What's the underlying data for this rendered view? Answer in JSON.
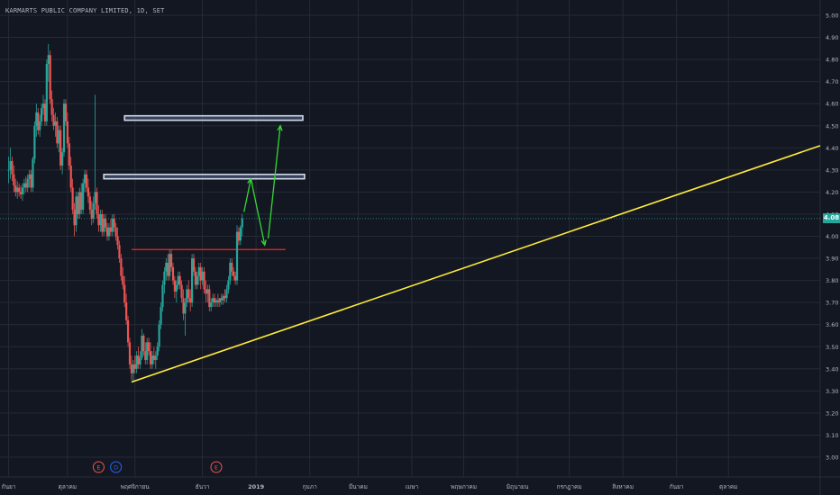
{
  "header": {
    "title": "KARMARTS PUBLIC COMPANY LIMITED, 1D, SET"
  },
  "price_tag": {
    "value": "4.08",
    "color": "#26a69a"
  },
  "colors": {
    "background": "#131722",
    "grid": "#262a35",
    "up": "#26a69a",
    "down": "#ef5350",
    "trendline": "#ffeb3b",
    "resistance": "#ff1f1f",
    "arrow": "#33d933",
    "zone": "#d1d9ea",
    "axis_text": "#b2b5be"
  },
  "chart_data": {
    "type": "candlestick",
    "title": "KARMARTS PUBLIC COMPANY LIMITED, 1D, SET",
    "xlabel": "",
    "ylabel": "",
    "ylim": [
      2.95,
      5.05
    ],
    "y_ticks": [
      "5.00",
      "4.90",
      "4.80",
      "4.70",
      "4.60",
      "4.50",
      "4.40",
      "4.30",
      "4.20",
      "4.10",
      "4.00",
      "3.90",
      "3.80",
      "3.70",
      "3.60",
      "3.50",
      "3.40",
      "3.30",
      "3.20",
      "3.10",
      "3.00"
    ],
    "x_ticks": [
      "กันยา",
      "ตุลาคม",
      "พฤศจิกายน",
      "ธันวา",
      "2019",
      "กุมภา",
      "มีนาคม",
      "เมษา",
      "พฤษภาคม",
      "มิถุนายน",
      "กรกฎาคม",
      "สิงหาคม",
      "กันยา",
      "ตุลาคม"
    ],
    "x_tick_days": [
      0,
      34,
      73,
      112,
      143,
      174,
      202,
      233,
      263,
      294,
      324,
      355,
      386,
      416
    ],
    "x_domain_days": [
      -5,
      469
    ],
    "grid": true,
    "last_price": 4.08,
    "candles": [
      {
        "d": 0,
        "o": 4.3,
        "h": 4.36,
        "l": 4.24,
        "c": 4.3
      },
      {
        "d": 1,
        "o": 4.3,
        "h": 4.4,
        "l": 4.26,
        "c": 4.34
      },
      {
        "d": 2,
        "o": 4.34,
        "h": 4.36,
        "l": 4.25,
        "c": 4.28
      },
      {
        "d": 3,
        "o": 4.28,
        "h": 4.32,
        "l": 4.2,
        "c": 4.23
      },
      {
        "d": 4,
        "o": 4.23,
        "h": 4.26,
        "l": 4.18,
        "c": 4.2
      },
      {
        "d": 5,
        "o": 4.2,
        "h": 4.25,
        "l": 4.17,
        "c": 4.22
      },
      {
        "d": 6,
        "o": 4.22,
        "h": 4.24,
        "l": 4.18,
        "c": 4.2
      },
      {
        "d": 7,
        "o": 4.2,
        "h": 4.23,
        "l": 4.17,
        "c": 4.19
      },
      {
        "d": 8,
        "o": 4.19,
        "h": 4.24,
        "l": 4.16,
        "c": 4.22
      },
      {
        "d": 9,
        "o": 4.22,
        "h": 4.26,
        "l": 4.19,
        "c": 4.24
      },
      {
        "d": 10,
        "o": 4.24,
        "h": 4.27,
        "l": 4.2,
        "c": 4.22
      },
      {
        "d": 11,
        "o": 4.22,
        "h": 4.28,
        "l": 4.2,
        "c": 4.26
      },
      {
        "d": 12,
        "o": 4.26,
        "h": 4.3,
        "l": 4.22,
        "c": 4.28
      },
      {
        "d": 13,
        "o": 4.28,
        "h": 4.3,
        "l": 4.2,
        "c": 4.22
      },
      {
        "d": 14,
        "o": 4.22,
        "h": 4.36,
        "l": 4.2,
        "c": 4.35
      },
      {
        "d": 15,
        "o": 4.35,
        "h": 4.52,
        "l": 4.33,
        "c": 4.5
      },
      {
        "d": 16,
        "o": 4.5,
        "h": 4.6,
        "l": 4.45,
        "c": 4.56
      },
      {
        "d": 17,
        "o": 4.56,
        "h": 4.58,
        "l": 4.46,
        "c": 4.48
      },
      {
        "d": 18,
        "o": 4.48,
        "h": 4.55,
        "l": 4.45,
        "c": 4.52
      },
      {
        "d": 19,
        "o": 4.52,
        "h": 4.6,
        "l": 4.5,
        "c": 4.58
      },
      {
        "d": 20,
        "o": 4.58,
        "h": 4.64,
        "l": 4.55,
        "c": 4.6
      },
      {
        "d": 21,
        "o": 4.6,
        "h": 4.62,
        "l": 4.5,
        "c": 4.52
      },
      {
        "d": 22,
        "o": 4.52,
        "h": 4.8,
        "l": 4.5,
        "c": 4.78
      },
      {
        "d": 23,
        "o": 4.78,
        "h": 4.87,
        "l": 4.7,
        "c": 4.82
      },
      {
        "d": 24,
        "o": 4.82,
        "h": 4.84,
        "l": 4.6,
        "c": 4.62
      },
      {
        "d": 25,
        "o": 4.62,
        "h": 4.66,
        "l": 4.52,
        "c": 4.55
      },
      {
        "d": 26,
        "o": 4.55,
        "h": 4.58,
        "l": 4.48,
        "c": 4.5
      },
      {
        "d": 27,
        "o": 4.5,
        "h": 4.56,
        "l": 4.45,
        "c": 4.52
      },
      {
        "d": 28,
        "o": 4.52,
        "h": 4.54,
        "l": 4.4,
        "c": 4.42
      },
      {
        "d": 29,
        "o": 4.42,
        "h": 4.5,
        "l": 4.38,
        "c": 4.48
      },
      {
        "d": 30,
        "o": 4.48,
        "h": 4.5,
        "l": 4.3,
        "c": 4.32
      },
      {
        "d": 31,
        "o": 4.32,
        "h": 4.4,
        "l": 4.28,
        "c": 4.38
      },
      {
        "d": 32,
        "o": 4.38,
        "h": 4.62,
        "l": 4.36,
        "c": 4.6
      },
      {
        "d": 33,
        "o": 4.6,
        "h": 4.62,
        "l": 4.5,
        "c": 4.52
      },
      {
        "d": 34,
        "o": 4.52,
        "h": 4.56,
        "l": 4.4,
        "c": 4.42
      },
      {
        "d": 35,
        "o": 4.42,
        "h": 4.45,
        "l": 4.3,
        "c": 4.32
      },
      {
        "d": 36,
        "o": 4.32,
        "h": 4.36,
        "l": 4.2,
        "c": 4.22
      },
      {
        "d": 37,
        "o": 4.22,
        "h": 4.26,
        "l": 4.1,
        "c": 4.12
      },
      {
        "d": 38,
        "o": 4.12,
        "h": 4.15,
        "l": 4.0,
        "c": 4.05
      },
      {
        "d": 39,
        "o": 4.05,
        "h": 4.2,
        "l": 4.02,
        "c": 4.18
      },
      {
        "d": 40,
        "o": 4.18,
        "h": 4.2,
        "l": 4.08,
        "c": 4.1
      },
      {
        "d": 41,
        "o": 4.1,
        "h": 4.22,
        "l": 4.08,
        "c": 4.2
      },
      {
        "d": 42,
        "o": 4.2,
        "h": 4.24,
        "l": 4.1,
        "c": 4.12
      },
      {
        "d": 43,
        "o": 4.12,
        "h": 4.26,
        "l": 4.1,
        "c": 4.24
      },
      {
        "d": 44,
        "o": 4.24,
        "h": 4.3,
        "l": 4.2,
        "c": 4.28
      },
      {
        "d": 45,
        "o": 4.28,
        "h": 4.3,
        "l": 4.2,
        "c": 4.22
      },
      {
        "d": 46,
        "o": 4.22,
        "h": 4.26,
        "l": 4.15,
        "c": 4.18
      },
      {
        "d": 47,
        "o": 4.18,
        "h": 4.2,
        "l": 4.1,
        "c": 4.12
      },
      {
        "d": 48,
        "o": 4.12,
        "h": 4.16,
        "l": 4.05,
        "c": 4.08
      },
      {
        "d": 49,
        "o": 4.08,
        "h": 4.18,
        "l": 4.06,
        "c": 4.15
      },
      {
        "d": 50,
        "o": 4.15,
        "h": 4.64,
        "l": 4.12,
        "c": 4.2
      },
      {
        "d": 51,
        "o": 4.2,
        "h": 4.22,
        "l": 4.08,
        "c": 4.1
      },
      {
        "d": 52,
        "o": 4.1,
        "h": 4.14,
        "l": 4.02,
        "c": 4.05
      },
      {
        "d": 53,
        "o": 4.05,
        "h": 4.12,
        "l": 4.02,
        "c": 4.1
      },
      {
        "d": 54,
        "o": 4.1,
        "h": 4.12,
        "l": 4.0,
        "c": 4.02
      },
      {
        "d": 55,
        "o": 4.02,
        "h": 4.1,
        "l": 4.0,
        "c": 4.08
      },
      {
        "d": 56,
        "o": 4.08,
        "h": 4.1,
        "l": 4.02,
        "c": 4.04
      },
      {
        "d": 57,
        "o": 4.04,
        "h": 4.06,
        "l": 3.98,
        "c": 4.0
      },
      {
        "d": 58,
        "o": 4.0,
        "h": 4.06,
        "l": 3.98,
        "c": 4.04
      },
      {
        "d": 59,
        "o": 4.04,
        "h": 4.08,
        "l": 4.0,
        "c": 4.02
      },
      {
        "d": 60,
        "o": 4.02,
        "h": 4.1,
        "l": 4.0,
        "c": 4.08
      },
      {
        "d": 61,
        "o": 4.08,
        "h": 4.1,
        "l": 4.02,
        "c": 4.04
      },
      {
        "d": 62,
        "o": 4.04,
        "h": 4.06,
        "l": 3.98,
        "c": 4.0
      },
      {
        "d": 63,
        "o": 4.0,
        "h": 4.04,
        "l": 3.94,
        "c": 3.96
      },
      {
        "d": 64,
        "o": 3.96,
        "h": 3.98,
        "l": 3.88,
        "c": 3.9
      },
      {
        "d": 65,
        "o": 3.9,
        "h": 3.92,
        "l": 3.8,
        "c": 3.82
      },
      {
        "d": 66,
        "o": 3.82,
        "h": 3.86,
        "l": 3.76,
        "c": 3.78
      },
      {
        "d": 67,
        "o": 3.78,
        "h": 3.82,
        "l": 3.68,
        "c": 3.7
      },
      {
        "d": 68,
        "o": 3.7,
        "h": 3.74,
        "l": 3.6,
        "c": 3.62
      },
      {
        "d": 69,
        "o": 3.62,
        "h": 3.64,
        "l": 3.5,
        "c": 3.52
      },
      {
        "d": 70,
        "o": 3.52,
        "h": 3.54,
        "l": 3.4,
        "c": 3.42
      },
      {
        "d": 71,
        "o": 3.42,
        "h": 3.46,
        "l": 3.35,
        "c": 3.38
      },
      {
        "d": 72,
        "o": 3.38,
        "h": 3.44,
        "l": 3.34,
        "c": 3.42
      },
      {
        "d": 73,
        "o": 3.42,
        "h": 3.46,
        "l": 3.38,
        "c": 3.4
      },
      {
        "d": 74,
        "o": 3.4,
        "h": 3.48,
        "l": 3.38,
        "c": 3.46
      },
      {
        "d": 75,
        "o": 3.46,
        "h": 3.5,
        "l": 3.4,
        "c": 3.42
      },
      {
        "d": 76,
        "o": 3.42,
        "h": 3.48,
        "l": 3.4,
        "c": 3.45
      },
      {
        "d": 77,
        "o": 3.45,
        "h": 3.58,
        "l": 3.44,
        "c": 3.55
      },
      {
        "d": 78,
        "o": 3.55,
        "h": 3.56,
        "l": 3.46,
        "c": 3.48
      },
      {
        "d": 79,
        "o": 3.48,
        "h": 3.52,
        "l": 3.42,
        "c": 3.44
      },
      {
        "d": 80,
        "o": 3.44,
        "h": 3.54,
        "l": 3.42,
        "c": 3.52
      },
      {
        "d": 81,
        "o": 3.52,
        "h": 3.54,
        "l": 3.46,
        "c": 3.48
      },
      {
        "d": 82,
        "o": 3.48,
        "h": 3.52,
        "l": 3.4,
        "c": 3.42
      },
      {
        "d": 83,
        "o": 3.42,
        "h": 3.48,
        "l": 3.4,
        "c": 3.46
      },
      {
        "d": 84,
        "o": 3.46,
        "h": 3.5,
        "l": 3.42,
        "c": 3.44
      },
      {
        "d": 85,
        "o": 3.44,
        "h": 3.48,
        "l": 3.4,
        "c": 3.46
      },
      {
        "d": 86,
        "o": 3.46,
        "h": 3.52,
        "l": 3.44,
        "c": 3.5
      },
      {
        "d": 87,
        "o": 3.5,
        "h": 3.62,
        "l": 3.48,
        "c": 3.6
      },
      {
        "d": 88,
        "o": 3.6,
        "h": 3.7,
        "l": 3.58,
        "c": 3.68
      },
      {
        "d": 89,
        "o": 3.68,
        "h": 3.8,
        "l": 3.66,
        "c": 3.78
      },
      {
        "d": 90,
        "o": 3.78,
        "h": 3.86,
        "l": 3.74,
        "c": 3.84
      },
      {
        "d": 91,
        "o": 3.84,
        "h": 3.9,
        "l": 3.8,
        "c": 3.88
      },
      {
        "d": 92,
        "o": 3.88,
        "h": 3.92,
        "l": 3.8,
        "c": 3.82
      },
      {
        "d": 93,
        "o": 3.82,
        "h": 3.94,
        "l": 3.8,
        "c": 3.92
      },
      {
        "d": 94,
        "o": 3.92,
        "h": 3.94,
        "l": 3.84,
        "c": 3.86
      },
      {
        "d": 95,
        "o": 3.86,
        "h": 3.88,
        "l": 3.78,
        "c": 3.8
      },
      {
        "d": 96,
        "o": 3.8,
        "h": 3.82,
        "l": 3.72,
        "c": 3.75
      },
      {
        "d": 97,
        "o": 3.75,
        "h": 3.8,
        "l": 3.7,
        "c": 3.78
      },
      {
        "d": 98,
        "o": 3.78,
        "h": 3.84,
        "l": 3.76,
        "c": 3.82
      },
      {
        "d": 99,
        "o": 3.82,
        "h": 3.84,
        "l": 3.76,
        "c": 3.78
      },
      {
        "d": 100,
        "o": 3.78,
        "h": 3.8,
        "l": 3.7,
        "c": 3.72
      },
      {
        "d": 101,
        "o": 3.72,
        "h": 3.76,
        "l": 3.62,
        "c": 3.65
      },
      {
        "d": 102,
        "o": 3.65,
        "h": 3.72,
        "l": 3.55,
        "c": 3.7
      },
      {
        "d": 103,
        "o": 3.7,
        "h": 3.78,
        "l": 3.68,
        "c": 3.76
      },
      {
        "d": 104,
        "o": 3.76,
        "h": 3.8,
        "l": 3.7,
        "c": 3.72
      },
      {
        "d": 105,
        "o": 3.72,
        "h": 3.76,
        "l": 3.66,
        "c": 3.7
      },
      {
        "d": 106,
        "o": 3.7,
        "h": 3.92,
        "l": 3.68,
        "c": 3.9
      },
      {
        "d": 107,
        "o": 3.9,
        "h": 3.92,
        "l": 3.82,
        "c": 3.84
      },
      {
        "d": 108,
        "o": 3.84,
        "h": 3.86,
        "l": 3.76,
        "c": 3.78
      },
      {
        "d": 109,
        "o": 3.78,
        "h": 3.84,
        "l": 3.76,
        "c": 3.82
      },
      {
        "d": 110,
        "o": 3.82,
        "h": 3.88,
        "l": 3.78,
        "c": 3.86
      },
      {
        "d": 111,
        "o": 3.86,
        "h": 3.88,
        "l": 3.76,
        "c": 3.8
      },
      {
        "d": 112,
        "o": 3.8,
        "h": 3.86,
        "l": 3.78,
        "c": 3.84
      },
      {
        "d": 113,
        "o": 3.84,
        "h": 3.86,
        "l": 3.74,
        "c": 3.76
      },
      {
        "d": 114,
        "o": 3.76,
        "h": 3.8,
        "l": 3.7,
        "c": 3.74
      },
      {
        "d": 115,
        "o": 3.74,
        "h": 3.78,
        "l": 3.7,
        "c": 3.76
      },
      {
        "d": 116,
        "o": 3.76,
        "h": 3.78,
        "l": 3.66,
        "c": 3.68
      },
      {
        "d": 117,
        "o": 3.68,
        "h": 3.72,
        "l": 3.66,
        "c": 3.7
      },
      {
        "d": 118,
        "o": 3.7,
        "h": 3.74,
        "l": 3.68,
        "c": 3.72
      },
      {
        "d": 119,
        "o": 3.72,
        "h": 3.74,
        "l": 3.68,
        "c": 3.7
      },
      {
        "d": 120,
        "o": 3.7,
        "h": 3.72,
        "l": 3.68,
        "c": 3.71
      },
      {
        "d": 121,
        "o": 3.71,
        "h": 3.74,
        "l": 3.68,
        "c": 3.7
      },
      {
        "d": 122,
        "o": 3.7,
        "h": 3.72,
        "l": 3.68,
        "c": 3.72
      },
      {
        "d": 123,
        "o": 3.72,
        "h": 3.74,
        "l": 3.69,
        "c": 3.71
      },
      {
        "d": 124,
        "o": 3.71,
        "h": 3.74,
        "l": 3.69,
        "c": 3.73
      },
      {
        "d": 125,
        "o": 3.73,
        "h": 3.76,
        "l": 3.7,
        "c": 3.72
      },
      {
        "d": 126,
        "o": 3.72,
        "h": 3.78,
        "l": 3.7,
        "c": 3.76
      },
      {
        "d": 127,
        "o": 3.76,
        "h": 3.82,
        "l": 3.74,
        "c": 3.8
      },
      {
        "d": 128,
        "o": 3.8,
        "h": 3.9,
        "l": 3.78,
        "c": 3.88
      },
      {
        "d": 129,
        "o": 3.88,
        "h": 3.9,
        "l": 3.82,
        "c": 3.84
      },
      {
        "d": 130,
        "o": 3.84,
        "h": 3.86,
        "l": 3.8,
        "c": 3.82
      },
      {
        "d": 131,
        "o": 3.82,
        "h": 3.84,
        "l": 3.78,
        "c": 3.8
      },
      {
        "d": 132,
        "o": 3.8,
        "h": 4.05,
        "l": 3.78,
        "c": 4.02
      },
      {
        "d": 133,
        "o": 4.02,
        "h": 4.04,
        "l": 3.96,
        "c": 3.98
      },
      {
        "d": 134,
        "o": 3.98,
        "h": 4.05,
        "l": 3.96,
        "c": 4.04
      },
      {
        "d": 135,
        "o": 4.04,
        "h": 4.1,
        "l": 4.0,
        "c": 4.08
      }
    ],
    "annotations": {
      "trendline": {
        "start": {
          "d": 71,
          "y": 3.34
        },
        "end": {
          "d": 469,
          "y": 4.41
        }
      },
      "resistance_line": {
        "y": 3.94,
        "d_start": 71,
        "d_end": 160
      },
      "zones": [
        {
          "y_top": 4.545,
          "y_bottom": 4.525,
          "d_start": 67,
          "d_end": 170
        },
        {
          "y_top": 4.28,
          "y_bottom": 4.26,
          "d_start": 55,
          "d_end": 171
        }
      ],
      "projection_path": [
        {
          "d": 136,
          "y": 4.11
        },
        {
          "d": 140,
          "y": 4.26
        },
        {
          "d": 148,
          "y": 3.96
        },
        {
          "d": 150,
          "y": 3.99
        },
        {
          "d": 157,
          "y": 4.5
        }
      ]
    },
    "events": [
      {
        "label": "E",
        "d": 52,
        "color": "#ef5350"
      },
      {
        "label": "D",
        "d": 62,
        "color": "#2962ff"
      },
      {
        "label": "E",
        "d": 120,
        "color": "#ef5350"
      }
    ]
  }
}
